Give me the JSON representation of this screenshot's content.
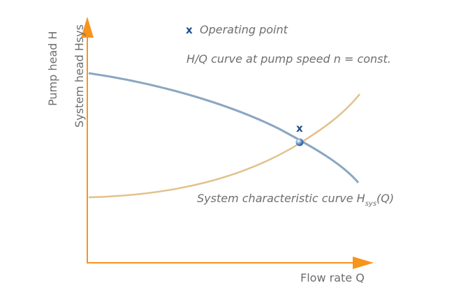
{
  "axes": {
    "y_label_pump": "Pump head H",
    "y_label_system": "System head Hsys",
    "x_label": "Flow rate Q"
  },
  "legend": {
    "marker": "x",
    "operating_point": "Operating point",
    "hq_curve": "H/Q curve at pump speed n = const."
  },
  "system_curve_label": {
    "prefix": "System characteristic curve H",
    "subscript": "sys",
    "suffix": "(Q)"
  },
  "operating_marker": "x",
  "colors": {
    "axis": "#f7941d",
    "pump_curve": "#8aa6c1",
    "system_curve": "#e2c18b",
    "marker": "#1d4f8c",
    "text": "#6e6e6e"
  }
}
